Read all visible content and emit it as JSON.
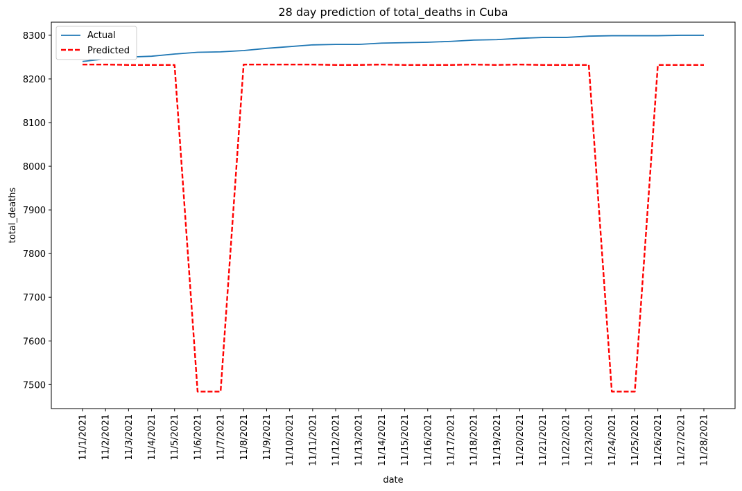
{
  "chart_data": {
    "type": "line",
    "title": "28 day prediction of total_deaths in Cuba",
    "xlabel": "date",
    "ylabel": "total_deaths",
    "categories": [
      "11/1/2021",
      "11/2/2021",
      "11/3/2021",
      "11/4/2021",
      "11/5/2021",
      "11/6/2021",
      "11/7/2021",
      "11/8/2021",
      "11/9/2021",
      "11/10/2021",
      "11/11/2021",
      "11/12/2021",
      "11/13/2021",
      "11/14/2021",
      "11/15/2021",
      "11/16/2021",
      "11/17/2021",
      "11/18/2021",
      "11/19/2021",
      "11/20/2021",
      "11/21/2021",
      "11/22/2021",
      "11/23/2021",
      "11/24/2021",
      "11/25/2021",
      "11/26/2021",
      "11/27/2021",
      "11/28/2021"
    ],
    "ylim": [
      7445,
      8330
    ],
    "yticks": [
      7500,
      7600,
      7700,
      7800,
      7900,
      8000,
      8100,
      8200,
      8300
    ],
    "grid": false,
    "legend_position": "top-left",
    "series": [
      {
        "name": "Actual",
        "color": "#1f77b4",
        "style": "solid",
        "values": [
          8240,
          8246,
          8250,
          8252,
          8257,
          8261,
          8262,
          8265,
          8270,
          8274,
          8278,
          8279,
          8279,
          8282,
          8283,
          8284,
          8286,
          8289,
          8290,
          8293,
          8295,
          8295,
          8298,
          8299,
          8299,
          8299,
          8300,
          8300
        ]
      },
      {
        "name": "Predicted",
        "color": "#ff0000",
        "style": "dashed",
        "values": [
          8233,
          8233,
          8232,
          8232,
          8232,
          7484,
          7484,
          8233,
          8233,
          8233,
          8233,
          8232,
          8232,
          8233,
          8232,
          8232,
          8232,
          8233,
          8232,
          8233,
          8232,
          8232,
          8232,
          7484,
          7484,
          8232,
          8232,
          8232
        ]
      }
    ]
  }
}
